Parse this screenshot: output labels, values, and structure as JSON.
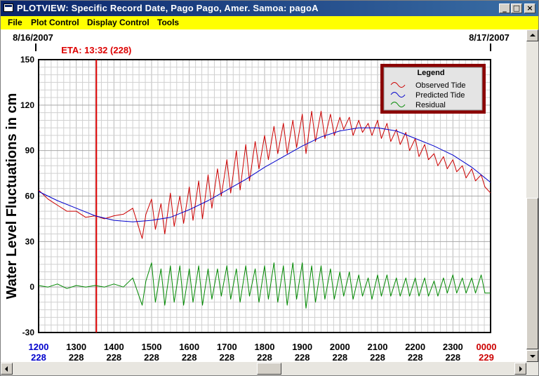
{
  "window": {
    "title": "PLOTVIEW: Specific Record Date, Pago Pago, Amer. Samoa: pagoA",
    "minimize": "_",
    "maximize": "□",
    "close": "×"
  },
  "menu": [
    "File",
    "Plot Control",
    "Display Control",
    "Tools"
  ],
  "colors": {
    "title_bar": "#0a246a",
    "menu_bar": "#ffff00",
    "observed": "#cc0000",
    "predicted": "#0000cc",
    "residual": "#008800",
    "eta_line": "#dd0000",
    "legend_border": "#8b0000"
  },
  "chart_data": {
    "type": "line",
    "ylabel": "Water Level Fluctuations in cm",
    "ylim": [
      -30,
      150
    ],
    "yticks": [
      150,
      120,
      90,
      60,
      30,
      0,
      -30
    ],
    "x_range_hours": [
      12,
      24
    ],
    "date_start": "8/16/2007",
    "date_end": "8/17/2007",
    "eta": {
      "label": "ETA: 13:32 (228)",
      "time": "1332",
      "day": "228"
    },
    "x_ticks": [
      {
        "time": "1200",
        "day": "228"
      },
      {
        "time": "1300",
        "day": "228"
      },
      {
        "time": "1400",
        "day": "228"
      },
      {
        "time": "1500",
        "day": "228"
      },
      {
        "time": "1600",
        "day": "228"
      },
      {
        "time": "1700",
        "day": "228"
      },
      {
        "time": "1800",
        "day": "228"
      },
      {
        "time": "1900",
        "day": "228"
      },
      {
        "time": "2000",
        "day": "228"
      },
      {
        "time": "2100",
        "day": "228"
      },
      {
        "time": "2200",
        "day": "228"
      },
      {
        "time": "2300",
        "day": "228"
      },
      {
        "time": "0000",
        "day": "229"
      }
    ],
    "legend": {
      "title": "Legend",
      "entries": [
        "Observed Tide",
        "Predicted Tide",
        "Residual"
      ],
      "position": "top-right"
    },
    "series": [
      {
        "name": "Predicted Tide",
        "x": [
          12.0,
          12.5,
          13.0,
          13.5,
          14.0,
          14.5,
          15.0,
          15.5,
          16.0,
          16.5,
          17.0,
          17.5,
          18.0,
          18.5,
          19.0,
          19.5,
          20.0,
          20.5,
          21.0,
          21.5,
          22.0,
          22.5,
          23.0,
          23.5,
          24.0
        ],
        "values": [
          63,
          57,
          52,
          47,
          44,
          43,
          44,
          46,
          51,
          57,
          64,
          71,
          79,
          86,
          93,
          99,
          103,
          105,
          105,
          103,
          98,
          93,
          87,
          79,
          69
        ]
      },
      {
        "name": "Observed Tide",
        "x": [
          12.0,
          12.25,
          12.5,
          12.75,
          13.0,
          13.25,
          13.5,
          13.75,
          14.0,
          14.25,
          14.5,
          14.75,
          14.85,
          15.0,
          15.1,
          15.25,
          15.35,
          15.5,
          15.6,
          15.75,
          15.85,
          16.0,
          16.1,
          16.25,
          16.35,
          16.5,
          16.6,
          16.75,
          16.85,
          17.0,
          17.1,
          17.25,
          17.35,
          17.5,
          17.6,
          17.75,
          17.85,
          18.0,
          18.1,
          18.25,
          18.35,
          18.5,
          18.6,
          18.75,
          18.85,
          19.0,
          19.1,
          19.25,
          19.35,
          19.5,
          19.6,
          19.75,
          19.85,
          20.0,
          20.1,
          20.25,
          20.35,
          20.5,
          20.6,
          20.75,
          20.85,
          21.0,
          21.1,
          21.25,
          21.35,
          21.5,
          21.6,
          21.75,
          21.85,
          22.0,
          22.1,
          22.25,
          22.35,
          22.5,
          22.6,
          22.75,
          22.85,
          23.0,
          23.1,
          23.25,
          23.35,
          23.5,
          23.6,
          23.75,
          23.85,
          24.0
        ],
        "values": [
          64,
          58,
          54,
          50,
          50,
          46,
          47,
          45,
          47,
          48,
          52,
          32,
          48,
          58,
          38,
          55,
          35,
          62,
          40,
          60,
          42,
          66,
          44,
          70,
          45,
          74,
          52,
          78,
          60,
          84,
          62,
          90,
          64,
          94,
          70,
          96,
          78,
          100,
          84,
          106,
          88,
          108,
          88,
          110,
          92,
          114,
          88,
          116,
          96,
          116,
          98,
          114,
          100,
          112,
          104,
          112,
          100,
          110,
          102,
          108,
          100,
          110,
          98,
          108,
          96,
          104,
          94,
          102,
          90,
          98,
          86,
          94,
          84,
          88,
          80,
          86,
          78,
          84,
          76,
          80,
          72,
          78,
          70,
          74,
          66,
          62
        ]
      },
      {
        "name": "Residual",
        "x": [
          12.0,
          12.25,
          12.5,
          12.75,
          13.0,
          13.25,
          13.5,
          13.75,
          14.0,
          14.25,
          14.5,
          14.75,
          14.85,
          15.0,
          15.1,
          15.25,
          15.35,
          15.5,
          15.6,
          15.75,
          15.85,
          16.0,
          16.1,
          16.25,
          16.35,
          16.5,
          16.6,
          16.75,
          16.85,
          17.0,
          17.1,
          17.25,
          17.35,
          17.5,
          17.6,
          17.75,
          17.85,
          18.0,
          18.1,
          18.25,
          18.35,
          18.5,
          18.6,
          18.75,
          18.85,
          19.0,
          19.1,
          19.25,
          19.35,
          19.5,
          19.6,
          19.75,
          19.85,
          20.0,
          20.1,
          20.25,
          20.35,
          20.5,
          20.6,
          20.75,
          20.85,
          21.0,
          21.1,
          21.25,
          21.35,
          21.5,
          21.6,
          21.75,
          21.85,
          22.0,
          22.1,
          22.25,
          22.35,
          22.5,
          22.6,
          22.75,
          22.85,
          23.0,
          23.1,
          23.25,
          23.35,
          23.5,
          23.6,
          23.75,
          23.85,
          24.0
        ],
        "values": [
          1,
          0,
          2,
          -1,
          1,
          0,
          1,
          0,
          2,
          0,
          6,
          -12,
          4,
          16,
          -10,
          12,
          -12,
          14,
          -10,
          14,
          -12,
          12,
          -10,
          14,
          -12,
          12,
          -8,
          12,
          -6,
          14,
          -8,
          12,
          -10,
          14,
          -6,
          12,
          -10,
          14,
          -8,
          16,
          -10,
          14,
          -12,
          16,
          -8,
          16,
          -14,
          14,
          -10,
          14,
          -8,
          12,
          -8,
          10,
          -6,
          10,
          -8,
          8,
          -6,
          6,
          -8,
          8,
          -6,
          8,
          -6,
          6,
          -6,
          6,
          -6,
          6,
          -6,
          6,
          -6,
          4,
          -6,
          6,
          -4,
          8,
          -4,
          6,
          -4,
          6,
          -4,
          8,
          -4,
          -4
        ]
      }
    ]
  }
}
